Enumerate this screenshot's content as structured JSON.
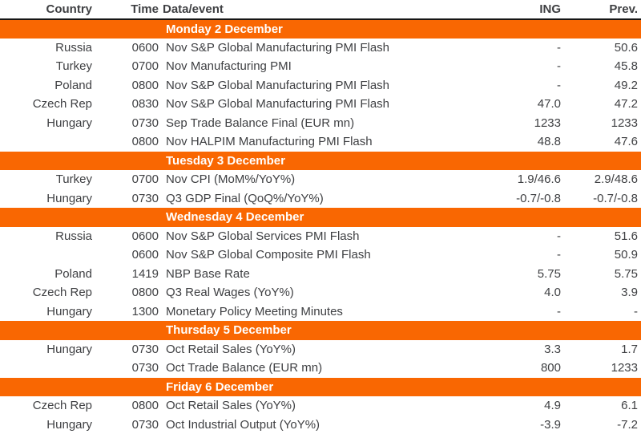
{
  "colors": {
    "accent_orange": "#f96702",
    "header_border": "#161616",
    "text": "#3f4043",
    "band_text": "#ffffff"
  },
  "table": {
    "headers": {
      "country": "Country",
      "time": "Time",
      "event": "Data/event",
      "ing": "ING",
      "prev": "Prev."
    },
    "sections": [
      {
        "day": "Monday 2 December",
        "rows": [
          {
            "country": "Russia",
            "time": "0600",
            "event": "Nov S&P Global Manufacturing PMI Flash",
            "ing": "-",
            "prev": "50.6"
          },
          {
            "country": "Turkey",
            "time": "0700",
            "event": "Nov Manufacturing PMI",
            "ing": "-",
            "prev": "45.8"
          },
          {
            "country": "Poland",
            "time": "0800",
            "event": "Nov S&P Global Manufacturing PMI Flash",
            "ing": "-",
            "prev": "49.2"
          },
          {
            "country": "Czech Rep",
            "time": "0830",
            "event": "Nov S&P Global Manufacturing PMI Flash",
            "ing": "47.0",
            "prev": "47.2"
          },
          {
            "country": "Hungary",
            "time": "0730",
            "event": "Sep Trade Balance Final (EUR mn)",
            "ing": "1233",
            "prev": "1233"
          },
          {
            "country": "",
            "time": "0800",
            "event": "Nov HALPIM Manufacturing PMI Flash",
            "ing": "48.8",
            "prev": "47.6"
          }
        ]
      },
      {
        "day": "Tuesday 3 December",
        "rows": [
          {
            "country": "Turkey",
            "time": "0700",
            "event": "Nov CPI (MoM%/YoY%)",
            "ing": "1.9/46.6",
            "prev": "2.9/48.6"
          },
          {
            "country": "Hungary",
            "time": "0730",
            "event": "Q3 GDP Final (QoQ%/YoY%)",
            "ing": "-0.7/-0.8",
            "prev": "-0.7/-0.8"
          }
        ]
      },
      {
        "day": "Wednesday 4 December",
        "rows": [
          {
            "country": "Russia",
            "time": "0600",
            "event": "Nov S&P Global Services PMI Flash",
            "ing": "-",
            "prev": "51.6"
          },
          {
            "country": "",
            "time": "0600",
            "event": "Nov S&P Global Composite PMI Flash",
            "ing": "-",
            "prev": "50.9"
          },
          {
            "country": "Poland",
            "time": "1419",
            "event": "NBP Base Rate",
            "ing": "5.75",
            "prev": "5.75"
          },
          {
            "country": "Czech Rep",
            "time": "0800",
            "event": "Q3 Real Wages (YoY%)",
            "ing": "4.0",
            "prev": "3.9"
          },
          {
            "country": "Hungary",
            "time": "1300",
            "event": "Monetary Policy Meeting Minutes",
            "ing": "-",
            "prev": "-"
          }
        ]
      },
      {
        "day": "Thursday 5 December",
        "rows": [
          {
            "country": "Hungary",
            "time": "0730",
            "event": "Oct Retail Sales (YoY%)",
            "ing": "3.3",
            "prev": "1.7"
          },
          {
            "country": "",
            "time": "0730",
            "event": "Oct Trade Balance (EUR mn)",
            "ing": "800",
            "prev": "1233"
          }
        ]
      },
      {
        "day": "Friday 6 December",
        "rows": [
          {
            "country": "Czech Rep",
            "time": "0800",
            "event": "Oct Retail Sales (YoY%)",
            "ing": "4.9",
            "prev": "6.1"
          },
          {
            "country": "Hungary",
            "time": "0730",
            "event": "Oct Industrial Output (YoY%)",
            "ing": "-3.9",
            "prev": "-7.2"
          }
        ]
      }
    ]
  }
}
